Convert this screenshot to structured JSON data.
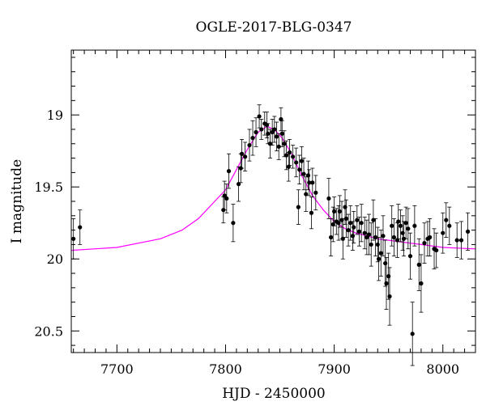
{
  "chart_data": {
    "type": "scatter",
    "title": "OGLE-2017-BLG-0347",
    "xlabel": "HJD - 2450000",
    "ylabel": "I magnitude",
    "xlim": [
      7658,
      8030
    ],
    "ylim": [
      20.65,
      18.55
    ],
    "y_inverted": true,
    "grid": false,
    "xticks": [
      7700,
      7800,
      7900,
      8000
    ],
    "yticks": [
      19,
      19.5,
      20,
      20.5
    ],
    "xtick_labels": [
      "7700",
      "7800",
      "7900",
      "8000"
    ],
    "ytick_labels": [
      "19",
      "19.5",
      "20",
      "20.5"
    ],
    "x_minor_step": 10,
    "y_minor_step": 0.1,
    "colors": {
      "points": "#000000",
      "model": "#ff00ff",
      "axes": "#000000"
    },
    "model_curve": {
      "name": "",
      "x": [
        7658,
        7700,
        7740,
        7760,
        7775,
        7790,
        7800,
        7810,
        7820,
        7830,
        7838,
        7845,
        7852,
        7860,
        7870,
        7880,
        7890,
        7900,
        7910,
        7920,
        7930,
        7940,
        7950,
        7960,
        7980,
        8000,
        8030
      ],
      "y": [
        19.94,
        19.92,
        19.86,
        19.8,
        19.72,
        19.6,
        19.52,
        19.38,
        19.24,
        19.12,
        19.08,
        19.1,
        19.16,
        19.26,
        19.42,
        19.56,
        19.66,
        19.74,
        19.79,
        19.82,
        19.84,
        19.86,
        19.87,
        19.88,
        19.9,
        19.92,
        19.93
      ]
    },
    "series": [
      {
        "name": "",
        "points": [
          [
            7660,
            19.86,
            0.14
          ],
          [
            7666,
            19.78,
            0.12
          ],
          [
            7798,
            19.66,
            0.09
          ],
          [
            7799,
            19.56,
            0.1
          ],
          [
            7801,
            19.58,
            0.1
          ],
          [
            7803,
            19.39,
            0.12
          ],
          [
            7807,
            19.75,
            0.13
          ],
          [
            7812,
            19.48,
            0.12
          ],
          [
            7814,
            19.37,
            0.1
          ],
          [
            7815,
            19.27,
            0.1
          ],
          [
            7818,
            19.29,
            0.1
          ],
          [
            7822,
            19.21,
            0.11
          ],
          [
            7825,
            19.16,
            0.12
          ],
          [
            7828,
            19.12,
            0.1
          ],
          [
            7831,
            19.01,
            0.08
          ],
          [
            7833,
            19.1,
            0.07
          ],
          [
            7836,
            19.06,
            0.08
          ],
          [
            7838,
            19.07,
            0.09
          ],
          [
            7839,
            19.13,
            0.07
          ],
          [
            7841,
            19.2,
            0.1
          ],
          [
            7843,
            19.12,
            0.09
          ],
          [
            7845,
            19.1,
            0.09
          ],
          [
            7847,
            19.15,
            0.1
          ],
          [
            7849,
            19.22,
            0.09
          ],
          [
            7851,
            19.03,
            0.08
          ],
          [
            7852,
            19.13,
            0.09
          ],
          [
            7854,
            19.2,
            0.09
          ],
          [
            7856,
            19.28,
            0.1
          ],
          [
            7858,
            19.36,
            0.1
          ],
          [
            7859,
            19.26,
            0.09
          ],
          [
            7862,
            19.29,
            0.08
          ],
          [
            7865,
            19.33,
            0.1
          ],
          [
            7867,
            19.64,
            0.12
          ],
          [
            7868,
            19.38,
            0.1
          ],
          [
            7870,
            19.32,
            0.1
          ],
          [
            7872,
            19.41,
            0.11
          ],
          [
            7874,
            19.55,
            0.12
          ],
          [
            7876,
            19.42,
            0.1
          ],
          [
            7877,
            19.47,
            0.09
          ],
          [
            7879,
            19.68,
            0.11
          ],
          [
            7880,
            19.47,
            0.1
          ],
          [
            7883,
            19.54,
            0.12
          ],
          [
            7895,
            19.58,
            0.14
          ],
          [
            7897,
            19.85,
            0.13
          ],
          [
            7899,
            19.76,
            0.12
          ],
          [
            7900,
            19.67,
            0.1
          ],
          [
            7902,
            19.74,
            0.09
          ],
          [
            7904,
            19.75,
            0.12
          ],
          [
            7905,
            19.67,
            0.11
          ],
          [
            7907,
            19.73,
            0.13
          ],
          [
            7908,
            19.86,
            0.14
          ],
          [
            7910,
            19.64,
            0.12
          ],
          [
            7911,
            19.72,
            0.13
          ],
          [
            7913,
            19.8,
            0.11
          ],
          [
            7915,
            19.75,
            0.12
          ],
          [
            7917,
            19.84,
            0.1
          ],
          [
            7918,
            19.78,
            0.11
          ],
          [
            7921,
            19.73,
            0.1
          ],
          [
            7923,
            19.81,
            0.1
          ],
          [
            7925,
            19.75,
            0.13
          ],
          [
            7928,
            19.82,
            0.11
          ],
          [
            7930,
            19.85,
            0.12
          ],
          [
            7932,
            19.83,
            0.14
          ],
          [
            7934,
            19.9,
            0.15
          ],
          [
            7936,
            19.73,
            0.14
          ],
          [
            7938,
            19.85,
            0.13
          ],
          [
            7940,
            19.9,
            0.12
          ],
          [
            7941,
            20.0,
            0.15
          ],
          [
            7943,
            19.96,
            0.16
          ],
          [
            7945,
            19.84,
            0.14
          ],
          [
            7947,
            20.03,
            0.16
          ],
          [
            7948,
            20.17,
            0.18
          ],
          [
            7950,
            20.12,
            0.16
          ],
          [
            7951,
            20.26,
            0.2
          ],
          [
            7953,
            19.77,
            0.14
          ],
          [
            7955,
            19.85,
            0.13
          ],
          [
            7958,
            19.87,
            0.12
          ],
          [
            7959,
            19.74,
            0.12
          ],
          [
            7961,
            19.77,
            0.11
          ],
          [
            7963,
            19.82,
            0.12
          ],
          [
            7964,
            19.86,
            0.12
          ],
          [
            7966,
            19.75,
            0.11
          ],
          [
            7968,
            19.79,
            0.14
          ],
          [
            7970,
            19.98,
            0.16
          ],
          [
            7972,
            20.52,
            0.22
          ],
          [
            7974,
            19.77,
            0.14
          ],
          [
            7978,
            20.04,
            0.18
          ],
          [
            7980,
            20.17,
            0.2
          ],
          [
            7983,
            19.89,
            0.14
          ],
          [
            7986,
            19.86,
            0.12
          ],
          [
            7988,
            19.85,
            0.13
          ],
          [
            7992,
            19.93,
            0.14
          ],
          [
            7994,
            19.94,
            0.12
          ],
          [
            8000,
            19.82,
            0.14
          ],
          [
            8003,
            19.73,
            0.12
          ],
          [
            8006,
            19.77,
            0.13
          ],
          [
            8013,
            19.87,
            0.12
          ],
          [
            8017,
            19.87,
            0.13
          ],
          [
            8023,
            19.81,
            0.13
          ]
        ]
      }
    ]
  }
}
